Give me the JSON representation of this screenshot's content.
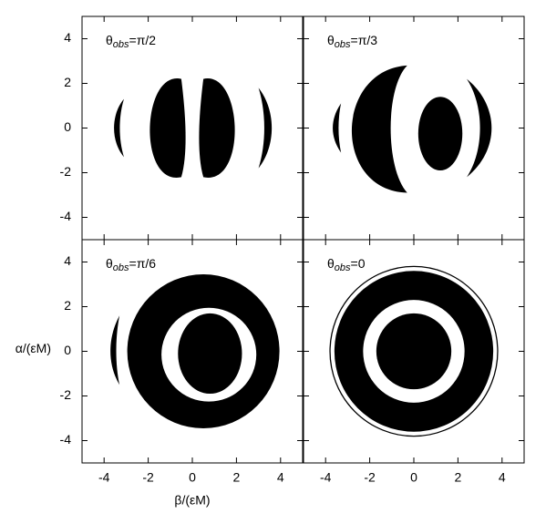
{
  "chart_data": [
    {
      "type": "shadow",
      "title": {
        "symbol": "θ",
        "sub": "obs",
        "rest": "=π/2"
      },
      "xlim": [
        -5,
        5
      ],
      "ylim": [
        -5,
        5
      ],
      "xticks": [
        -4,
        -2,
        0,
        2,
        4
      ],
      "yticks": [
        -4,
        -2,
        0,
        2,
        4
      ]
    },
    {
      "type": "shadow",
      "title": {
        "symbol": "θ",
        "sub": "obs",
        "rest": "=π/3"
      },
      "xlim": [
        -5,
        5
      ],
      "ylim": [
        -5,
        5
      ],
      "xticks": [
        -4,
        -2,
        0,
        2,
        4
      ],
      "yticks": [
        -4,
        -2,
        0,
        2,
        4
      ]
    },
    {
      "type": "shadow",
      "title": {
        "symbol": "θ",
        "sub": "obs",
        "rest": "=π/6"
      },
      "xlim": [
        -5,
        5
      ],
      "ylim": [
        -5,
        5
      ],
      "xticks": [
        -4,
        -2,
        0,
        2,
        4
      ],
      "yticks": [
        -4,
        -2,
        0,
        2,
        4
      ],
      "xlabel": "β/(εM)",
      "ylabel": "α/(εM)"
    },
    {
      "type": "shadow",
      "title": {
        "symbol": "θ",
        "sub": "obs",
        "rest": "=0"
      },
      "xlim": [
        -5,
        5
      ],
      "ylim": [
        -5,
        5
      ],
      "xticks": [
        -4,
        -2,
        0,
        2,
        4
      ],
      "yticks": [
        -4,
        -2,
        0,
        2,
        4
      ]
    }
  ]
}
